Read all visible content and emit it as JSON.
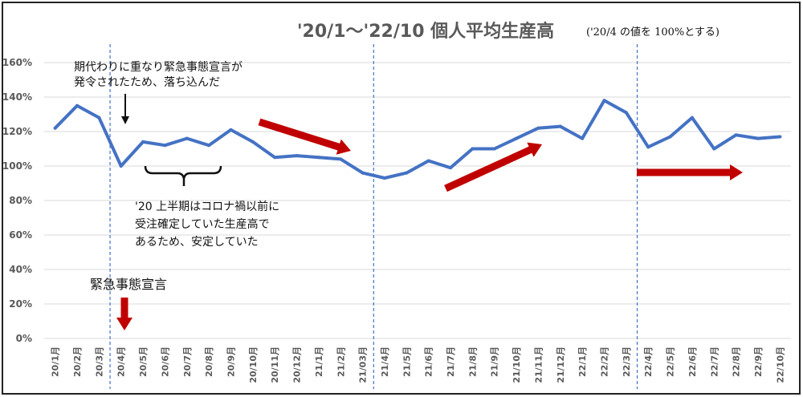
{
  "chart_data": {
    "type": "line",
    "title": "'20/1～'22/10 個人平均生産高",
    "note": "('20/4 の値を 100%とする)",
    "categories": [
      "20/1月",
      "20/2月",
      "20/3月",
      "20/4月",
      "20/5月",
      "20/6月",
      "20/7月",
      "20/8月",
      "20/9月",
      "20/10月",
      "20/11月",
      "20/12月",
      "21/1月",
      "21/2月",
      "21/03月",
      "21/4月",
      "21/5月",
      "21/6月",
      "21/7月",
      "21/8月",
      "21/9月",
      "21/10月",
      "21/11月",
      "21/12月",
      "22/1月",
      "22/2月",
      "22/3月",
      "22/4月",
      "22/5月",
      "22/6月",
      "22/7月",
      "22/8月",
      "22/9月",
      "22/10月"
    ],
    "values": [
      122,
      135,
      128,
      100,
      114,
      112,
      116,
      112,
      121,
      114,
      105,
      106,
      105,
      104,
      96,
      93,
      96,
      103,
      99,
      110,
      110,
      116,
      122,
      123,
      116,
      138,
      131,
      111,
      117,
      128,
      110,
      118,
      116,
      117
    ],
    "y_ticks": [
      "0%",
      "20%",
      "40%",
      "60%",
      "80%",
      "100%",
      "120%",
      "140%",
      "160%"
    ],
    "ylim": [
      0,
      160
    ],
    "series_color": "#4472C4",
    "divider_color": "#4472C4",
    "arrow_color": "#C00000",
    "dividers_after_category_index": [
      2.5,
      14.5,
      26.5
    ],
    "annotations": {
      "a1": [
        "期代わりに重なり緊急事態宣言が",
        "発令されたため、落ち込んだ"
      ],
      "a2": [
        "'20 上半期はコロナ禍以前に",
        "受注確定していた生産高で",
        "あるため、安定していた"
      ],
      "a3": "緊急事態宣言"
    }
  }
}
